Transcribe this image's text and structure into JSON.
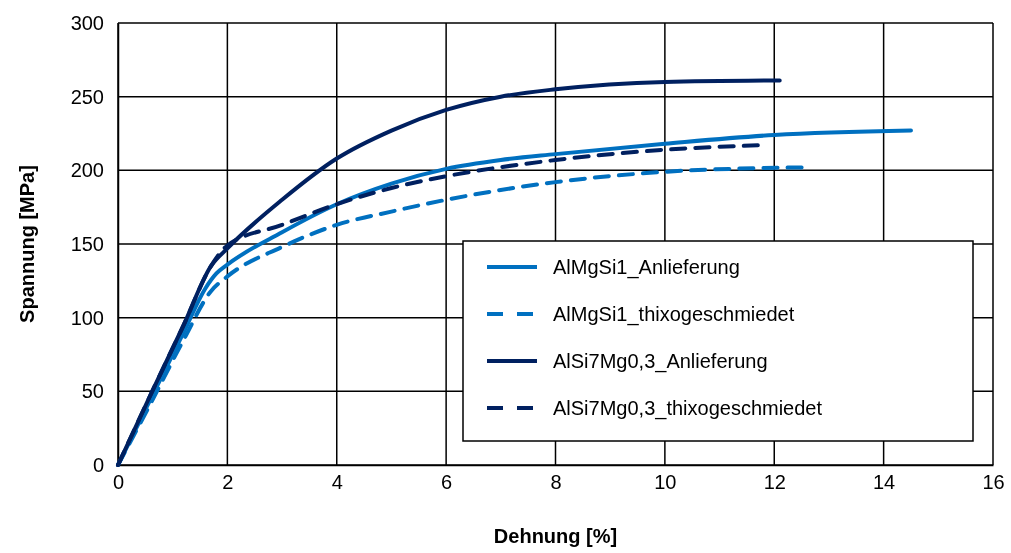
{
  "chart_data": {
    "type": "line",
    "xlabel": "Dehnung [%]",
    "ylabel": "Spannung [MPa]",
    "xlim": [
      0,
      16
    ],
    "xticks": [
      0,
      2,
      4,
      6,
      8,
      10,
      12,
      14,
      16
    ],
    "ylim": [
      0,
      300
    ],
    "yticks": [
      0,
      50,
      100,
      150,
      200,
      250,
      300
    ],
    "grid": true,
    "legend": "bottom right",
    "marker": "none",
    "series": [
      {
        "name": "AlMgSi1_Anlieferung",
        "color": "#0070c0",
        "line_style": "solid",
        "x": [
          0,
          0.6,
          1.2,
          1.6,
          1.8,
          2,
          3,
          4,
          5,
          6,
          7,
          8,
          10,
          12,
          14.5
        ],
        "values": [
          0,
          45,
          90,
          120,
          130,
          136,
          158,
          177,
          191,
          201,
          207,
          211,
          218,
          224,
          227
        ]
      },
      {
        "name": "AlMgSi1_thixogeschmiedet",
        "color": "#0070c0",
        "line_style": "dashed",
        "x": [
          0,
          0.6,
          1.2,
          1.7,
          2,
          3,
          4,
          5,
          6,
          8,
          10,
          12.5
        ],
        "values": [
          0,
          42,
          85,
          118,
          128,
          148,
          163,
          172,
          180,
          192,
          199,
          202
        ]
      },
      {
        "name": "AlSi7Mg0,3_Anlieferung",
        "color": "#002060",
        "line_style": "solid",
        "x": [
          0,
          0.6,
          1.2,
          1.7,
          2,
          3,
          4,
          5,
          6,
          7,
          8,
          10,
          12.1
        ],
        "values": [
          0,
          48,
          95,
          135,
          147,
          180,
          208,
          227,
          241,
          250,
          255,
          260,
          261
        ]
      },
      {
        "name": "AlSi7Mg0,3_thixogeschmiedet",
        "color": "#002060",
        "line_style": "dashed",
        "x": [
          0,
          0.6,
          1.2,
          1.7,
          2,
          3,
          4,
          5,
          6,
          8,
          10,
          11.7
        ],
        "values": [
          0,
          48,
          95,
          135,
          149,
          163,
          177,
          188,
          196,
          207,
          214,
          217
        ]
      }
    ]
  }
}
